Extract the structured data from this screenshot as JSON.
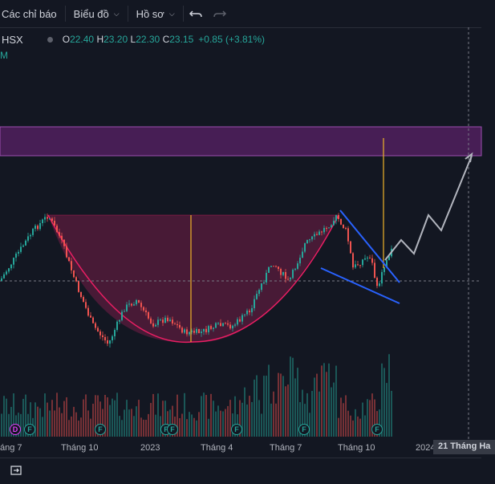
{
  "toolbar": {
    "indicators_label": "Các chỉ báo",
    "chart_label": "Biểu đồ",
    "profile_label": "Hồ sơ"
  },
  "legend": {
    "symbol": "HSX",
    "o_key": "O",
    "o_val": "22.40",
    "h_key": "H",
    "h_val": "23.20",
    "l_key": "L",
    "l_val": "22.30",
    "c_key": "C",
    "c_val": "23.15",
    "change": "+0.85 (+3.81%)",
    "sub": "M"
  },
  "xaxis": {
    "labels": [
      "áng 7",
      "Tháng 10",
      "2023",
      "Tháng 4",
      "Tháng 7",
      "Tháng 10",
      "2024"
    ],
    "crosshair_label": "21 Tháng Ha"
  },
  "events": {
    "dividend": "D",
    "earnings": "F"
  },
  "colors": {
    "up": "#26a69a",
    "down": "#ef5350",
    "zone": "#7b2a8c",
    "cup": "#e91e63",
    "wedge": "#2962ff",
    "projection": "#b2b5be",
    "vline": "#f0b429"
  }
}
